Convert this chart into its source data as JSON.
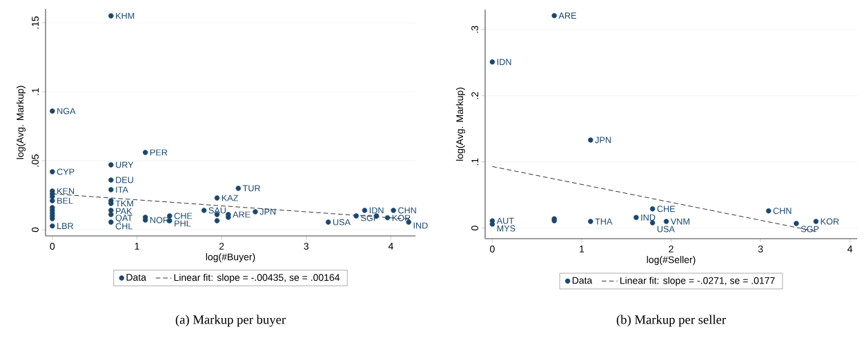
{
  "chart_data": [
    {
      "type": "scatter",
      "title": "(a) Markup per buyer",
      "xlabel": "log(#Buyer)",
      "ylabel": "log(Avg. Markup)",
      "xlim": [
        -0.08,
        4.29
      ],
      "ylim": [
        -0.0045,
        0.16
      ],
      "xticks": [
        0,
        1,
        2,
        3,
        4
      ],
      "yticks": [
        {
          "value": 0,
          "label": "0"
        },
        {
          "value": 0.05,
          "label": ".05"
        },
        {
          "value": 0.1,
          "label": ".1"
        },
        {
          "value": 0.15,
          "label": ".15"
        }
      ],
      "grid": "y",
      "legend": "bottom",
      "series": [
        {
          "name": "Data",
          "type": "scatter",
          "marker": "circle",
          "color": "#1a476f",
          "x": [
            0,
            0,
            0,
            0,
            0,
            0,
            0,
            0,
            0,
            0,
            0,
            0,
            0.693,
            0.693,
            0.693,
            0.693,
            0.693,
            0.693,
            0.693,
            0.693,
            0.693,
            1.099,
            1.099,
            1.099,
            1.386,
            1.386,
            1.792,
            1.946,
            1.946,
            1.946,
            2.079,
            2.079,
            2.197,
            2.398,
            3.26,
            3.59,
            3.69,
            3.83,
            3.96,
            4.03,
            4.21
          ],
          "values": [
            0.086,
            0.042,
            0.028,
            0.026,
            0.024,
            0.021,
            0.016,
            0.014,
            0.012,
            0.01,
            0.008,
            0.0027,
            0.155,
            0.047,
            0.036,
            0.029,
            0.021,
            0.019,
            0.014,
            0.011,
            0.0055,
            0.056,
            0.009,
            0.007,
            0.01,
            0.0065,
            0.014,
            0.023,
            0.011,
            0.0065,
            0.011,
            0.009,
            0.03,
            0.013,
            0.0055,
            0.01,
            0.014,
            0.01,
            0.0087,
            0.014,
            0.0055
          ]
        },
        {
          "name": "Linear fit: slope = -.00435, se = .00164",
          "type": "line",
          "marker": "none",
          "line_style": "dashed",
          "color": "#000000",
          "x": [
            0,
            4.21
          ],
          "values": [
            0.026,
            0.0077
          ]
        }
      ],
      "annotations": [
        {
          "text": "NGA",
          "x": 0,
          "y": 0.086
        },
        {
          "text": "CYP",
          "x": 0,
          "y": 0.042
        },
        {
          "text": "KEN",
          "x": 0,
          "y": 0.028
        },
        {
          "text": "BEL",
          "x": 0,
          "y": 0.021
        },
        {
          "text": "LBR",
          "x": 0,
          "y": 0.0027
        },
        {
          "text": "KHM",
          "x": 0.693,
          "y": 0.155
        },
        {
          "text": "URY",
          "x": 0.693,
          "y": 0.047
        },
        {
          "text": "DEU",
          "x": 0.693,
          "y": 0.036
        },
        {
          "text": "ITA",
          "x": 0.693,
          "y": 0.029
        },
        {
          "text": "TKM",
          "x": 0.693,
          "y": 0.019
        },
        {
          "text": "PAK",
          "x": 0.693,
          "y": 0.014
        },
        {
          "text": "QAT",
          "x": 0.693,
          "y": 0.011
        },
        {
          "text": "CHL",
          "x": 0.693,
          "y": 0.0055
        },
        {
          "text": "PER",
          "x": 1.099,
          "y": 0.056
        },
        {
          "text": "NOR",
          "x": 1.099,
          "y": 0.007
        },
        {
          "text": "CHE",
          "x": 1.386,
          "y": 0.01
        },
        {
          "text": "PHL",
          "x": 1.386,
          "y": 0.0065
        },
        {
          "text": "SAU",
          "x": 1.792,
          "y": 0.014
        },
        {
          "text": "KAZ",
          "x": 1.946,
          "y": 0.023
        },
        {
          "text": "ARE",
          "x": 2.079,
          "y": 0.011
        },
        {
          "text": "TUR",
          "x": 2.197,
          "y": 0.03
        },
        {
          "text": "JPN",
          "x": 2.398,
          "y": 0.013
        },
        {
          "text": "USA",
          "x": 3.26,
          "y": 0.0055
        },
        {
          "text": "SGP",
          "x": 3.59,
          "y": 0.01
        },
        {
          "text": "IDN",
          "x": 3.69,
          "y": 0.014
        },
        {
          "text": "KOR",
          "x": 3.96,
          "y": 0.0087
        },
        {
          "text": "CHN",
          "x": 4.03,
          "y": 0.014
        },
        {
          "text": "IND",
          "x": 4.21,
          "y": 0.0055
        }
      ]
    },
    {
      "type": "scatter",
      "title": "(b) Markup per seller",
      "xlabel": "log(#Seller)",
      "ylabel": "log(Avg. Markup)",
      "xlim": [
        -0.08,
        4.08
      ],
      "ylim": [
        -0.016,
        0.33
      ],
      "xticks": [
        0,
        1,
        2,
        3,
        4
      ],
      "yticks": [
        {
          "value": 0,
          "label": "0"
        },
        {
          "value": 0.1,
          "label": ".1"
        },
        {
          "value": 0.2,
          "label": ".2"
        },
        {
          "value": 0.3,
          "label": ".3"
        }
      ],
      "grid": "y",
      "legend": "bottom",
      "series": [
        {
          "name": "Data",
          "type": "scatter",
          "marker": "circle",
          "color": "#1a476f",
          "x": [
            0,
            0,
            0,
            0.693,
            0.693,
            0.693,
            1.099,
            1.099,
            1.609,
            1.792,
            1.792,
            1.946,
            3.09,
            3.4,
            3.62
          ],
          "values": [
            0.251,
            0.011,
            0.006,
            0.321,
            0.014,
            0.011,
            0.133,
            0.01,
            0.016,
            0.029,
            0.008,
            0.01,
            0.026,
            0.007,
            0.01
          ]
        },
        {
          "name": "Linear fit: slope = -.0271, se = .0177",
          "type": "line",
          "marker": "none",
          "line_style": "dashed",
          "color": "#000000",
          "x": [
            0,
            3.62
          ],
          "values": [
            0.093,
            -0.005
          ]
        }
      ],
      "annotations": [
        {
          "text": "IDN",
          "x": 0,
          "y": 0.251
        },
        {
          "text": "AUT",
          "x": 0,
          "y": 0.011
        },
        {
          "text": "MYS",
          "x": 0,
          "y": 0.006
        },
        {
          "text": "ARE",
          "x": 0.693,
          "y": 0.321
        },
        {
          "text": "JPN",
          "x": 1.099,
          "y": 0.133
        },
        {
          "text": "THA",
          "x": 1.099,
          "y": 0.01
        },
        {
          "text": "IND",
          "x": 1.609,
          "y": 0.016
        },
        {
          "text": "CHE",
          "x": 1.792,
          "y": 0.029
        },
        {
          "text": "USA",
          "x": 1.792,
          "y": 0.008
        },
        {
          "text": "VNM",
          "x": 1.946,
          "y": 0.01
        },
        {
          "text": "CHN",
          "x": 3.09,
          "y": 0.026
        },
        {
          "text": "SGP",
          "x": 3.4,
          "y": 0.007
        },
        {
          "text": "KOR",
          "x": 3.62,
          "y": 0.01
        }
      ]
    }
  ]
}
